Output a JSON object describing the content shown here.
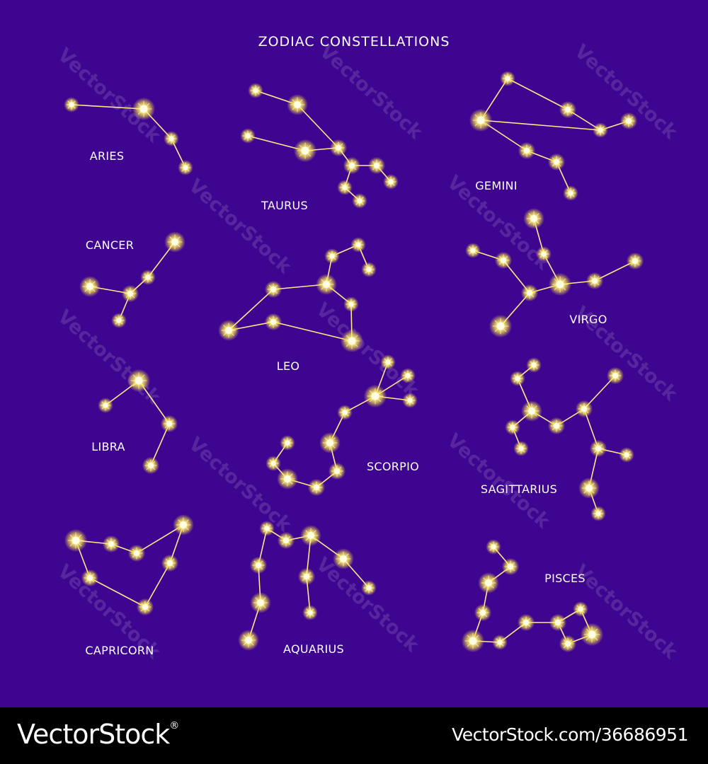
{
  "title": "ZODIAC  CONSTELLATIONS",
  "colors": {
    "background": "#3e0590",
    "star": "#fff58a",
    "line": "#ffe88a",
    "footer": "#000000"
  },
  "constellations": [
    {
      "name": "ARIES"
    },
    {
      "name": "TAURUS"
    },
    {
      "name": "GEMINI"
    },
    {
      "name": "CANCER"
    },
    {
      "name": "LEO"
    },
    {
      "name": "VIRGO"
    },
    {
      "name": "LIBRA"
    },
    {
      "name": "SCORPIO"
    },
    {
      "name": "SAGITTARIUS"
    },
    {
      "name": "CAPRICORN"
    },
    {
      "name": "AQUARIUS"
    },
    {
      "name": "PISCES"
    }
  ],
  "watermark": "VectorStock",
  "footer": {
    "brand": "VectorStock",
    "brand_mark": "®",
    "url": "VectorStock.com/36686951"
  }
}
